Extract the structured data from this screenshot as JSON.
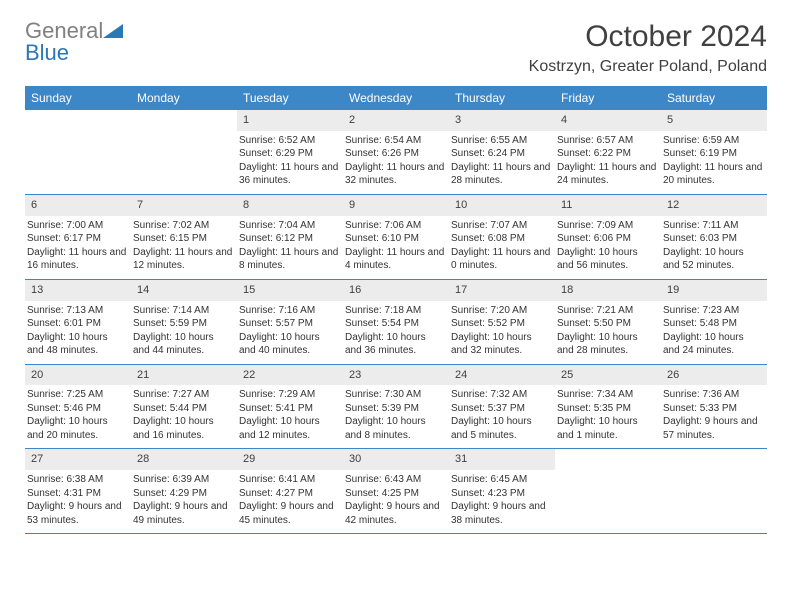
{
  "logo": {
    "gray": "General",
    "blue": "Blue"
  },
  "title": "October 2024",
  "location": "Kostrzyn, Greater Poland, Poland",
  "colors": {
    "header_bg": "#3b87c8",
    "header_text": "#ffffff",
    "daynum_bg": "#ececec",
    "text": "#333333",
    "logo_gray": "#808080",
    "logo_blue": "#2c77b8"
  },
  "day_headers": [
    "Sunday",
    "Monday",
    "Tuesday",
    "Wednesday",
    "Thursday",
    "Friday",
    "Saturday"
  ],
  "weeks": [
    [
      null,
      null,
      {
        "n": "1",
        "sunrise": "Sunrise: 6:52 AM",
        "sunset": "Sunset: 6:29 PM",
        "daylight": "Daylight: 11 hours and 36 minutes."
      },
      {
        "n": "2",
        "sunrise": "Sunrise: 6:54 AM",
        "sunset": "Sunset: 6:26 PM",
        "daylight": "Daylight: 11 hours and 32 minutes."
      },
      {
        "n": "3",
        "sunrise": "Sunrise: 6:55 AM",
        "sunset": "Sunset: 6:24 PM",
        "daylight": "Daylight: 11 hours and 28 minutes."
      },
      {
        "n": "4",
        "sunrise": "Sunrise: 6:57 AM",
        "sunset": "Sunset: 6:22 PM",
        "daylight": "Daylight: 11 hours and 24 minutes."
      },
      {
        "n": "5",
        "sunrise": "Sunrise: 6:59 AM",
        "sunset": "Sunset: 6:19 PM",
        "daylight": "Daylight: 11 hours and 20 minutes."
      }
    ],
    [
      {
        "n": "6",
        "sunrise": "Sunrise: 7:00 AM",
        "sunset": "Sunset: 6:17 PM",
        "daylight": "Daylight: 11 hours and 16 minutes."
      },
      {
        "n": "7",
        "sunrise": "Sunrise: 7:02 AM",
        "sunset": "Sunset: 6:15 PM",
        "daylight": "Daylight: 11 hours and 12 minutes."
      },
      {
        "n": "8",
        "sunrise": "Sunrise: 7:04 AM",
        "sunset": "Sunset: 6:12 PM",
        "daylight": "Daylight: 11 hours and 8 minutes."
      },
      {
        "n": "9",
        "sunrise": "Sunrise: 7:06 AM",
        "sunset": "Sunset: 6:10 PM",
        "daylight": "Daylight: 11 hours and 4 minutes."
      },
      {
        "n": "10",
        "sunrise": "Sunrise: 7:07 AM",
        "sunset": "Sunset: 6:08 PM",
        "daylight": "Daylight: 11 hours and 0 minutes."
      },
      {
        "n": "11",
        "sunrise": "Sunrise: 7:09 AM",
        "sunset": "Sunset: 6:06 PM",
        "daylight": "Daylight: 10 hours and 56 minutes."
      },
      {
        "n": "12",
        "sunrise": "Sunrise: 7:11 AM",
        "sunset": "Sunset: 6:03 PM",
        "daylight": "Daylight: 10 hours and 52 minutes."
      }
    ],
    [
      {
        "n": "13",
        "sunrise": "Sunrise: 7:13 AM",
        "sunset": "Sunset: 6:01 PM",
        "daylight": "Daylight: 10 hours and 48 minutes."
      },
      {
        "n": "14",
        "sunrise": "Sunrise: 7:14 AM",
        "sunset": "Sunset: 5:59 PM",
        "daylight": "Daylight: 10 hours and 44 minutes."
      },
      {
        "n": "15",
        "sunrise": "Sunrise: 7:16 AM",
        "sunset": "Sunset: 5:57 PM",
        "daylight": "Daylight: 10 hours and 40 minutes."
      },
      {
        "n": "16",
        "sunrise": "Sunrise: 7:18 AM",
        "sunset": "Sunset: 5:54 PM",
        "daylight": "Daylight: 10 hours and 36 minutes."
      },
      {
        "n": "17",
        "sunrise": "Sunrise: 7:20 AM",
        "sunset": "Sunset: 5:52 PM",
        "daylight": "Daylight: 10 hours and 32 minutes."
      },
      {
        "n": "18",
        "sunrise": "Sunrise: 7:21 AM",
        "sunset": "Sunset: 5:50 PM",
        "daylight": "Daylight: 10 hours and 28 minutes."
      },
      {
        "n": "19",
        "sunrise": "Sunrise: 7:23 AM",
        "sunset": "Sunset: 5:48 PM",
        "daylight": "Daylight: 10 hours and 24 minutes."
      }
    ],
    [
      {
        "n": "20",
        "sunrise": "Sunrise: 7:25 AM",
        "sunset": "Sunset: 5:46 PM",
        "daylight": "Daylight: 10 hours and 20 minutes."
      },
      {
        "n": "21",
        "sunrise": "Sunrise: 7:27 AM",
        "sunset": "Sunset: 5:44 PM",
        "daylight": "Daylight: 10 hours and 16 minutes."
      },
      {
        "n": "22",
        "sunrise": "Sunrise: 7:29 AM",
        "sunset": "Sunset: 5:41 PM",
        "daylight": "Daylight: 10 hours and 12 minutes."
      },
      {
        "n": "23",
        "sunrise": "Sunrise: 7:30 AM",
        "sunset": "Sunset: 5:39 PM",
        "daylight": "Daylight: 10 hours and 8 minutes."
      },
      {
        "n": "24",
        "sunrise": "Sunrise: 7:32 AM",
        "sunset": "Sunset: 5:37 PM",
        "daylight": "Daylight: 10 hours and 5 minutes."
      },
      {
        "n": "25",
        "sunrise": "Sunrise: 7:34 AM",
        "sunset": "Sunset: 5:35 PM",
        "daylight": "Daylight: 10 hours and 1 minute."
      },
      {
        "n": "26",
        "sunrise": "Sunrise: 7:36 AM",
        "sunset": "Sunset: 5:33 PM",
        "daylight": "Daylight: 9 hours and 57 minutes."
      }
    ],
    [
      {
        "n": "27",
        "sunrise": "Sunrise: 6:38 AM",
        "sunset": "Sunset: 4:31 PM",
        "daylight": "Daylight: 9 hours and 53 minutes."
      },
      {
        "n": "28",
        "sunrise": "Sunrise: 6:39 AM",
        "sunset": "Sunset: 4:29 PM",
        "daylight": "Daylight: 9 hours and 49 minutes."
      },
      {
        "n": "29",
        "sunrise": "Sunrise: 6:41 AM",
        "sunset": "Sunset: 4:27 PM",
        "daylight": "Daylight: 9 hours and 45 minutes."
      },
      {
        "n": "30",
        "sunrise": "Sunrise: 6:43 AM",
        "sunset": "Sunset: 4:25 PM",
        "daylight": "Daylight: 9 hours and 42 minutes."
      },
      {
        "n": "31",
        "sunrise": "Sunrise: 6:45 AM",
        "sunset": "Sunset: 4:23 PM",
        "daylight": "Daylight: 9 hours and 38 minutes."
      },
      null,
      null
    ]
  ]
}
